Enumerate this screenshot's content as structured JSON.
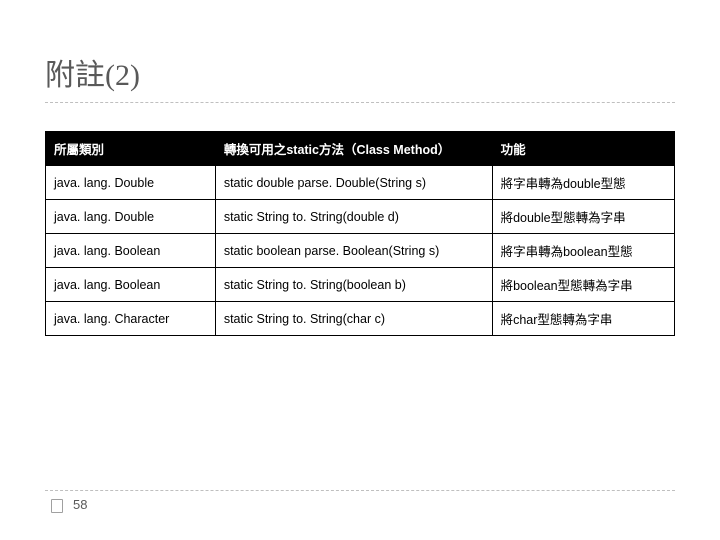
{
  "title": "附註(2)",
  "table": {
    "headers": [
      "所屬類別",
      "轉換可用之static方法（Class Method）",
      "功能"
    ],
    "rows": [
      [
        "java. lang. Double",
        "static double parse. Double(String s)",
        "將字串轉為double型態"
      ],
      [
        "java. lang. Double",
        "static String to. String(double d)",
        "將double型態轉為字串"
      ],
      [
        "java. lang. Boolean",
        "static boolean parse. Boolean(String s)",
        "將字串轉為boolean型態"
      ],
      [
        "java. lang. Boolean",
        "static String to. String(boolean b)",
        "將boolean型態轉為字串"
      ],
      [
        "java. lang. Character",
        "static String to. String(char c)",
        "將char型態轉為字串"
      ]
    ]
  },
  "pageNumber": "58"
}
